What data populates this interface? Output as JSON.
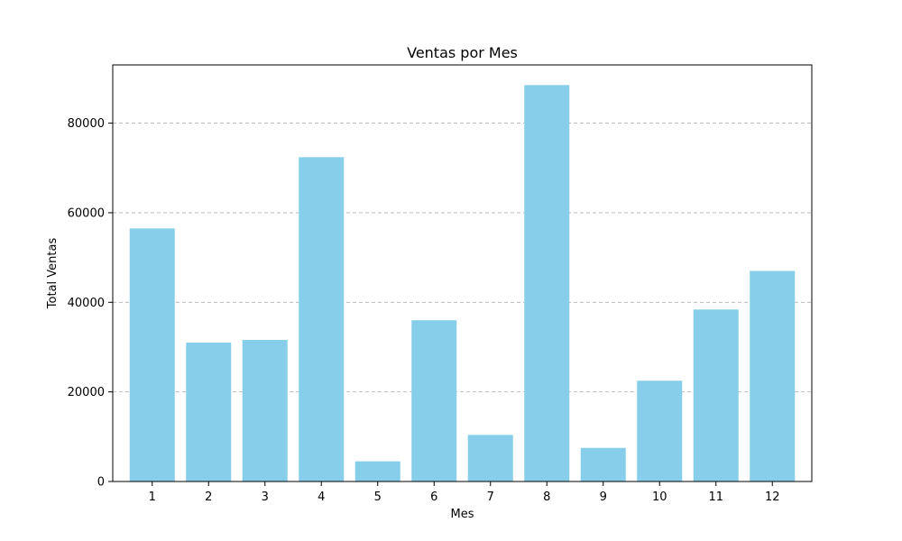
{
  "chart_data": {
    "type": "bar",
    "title": "Ventas por Mes",
    "xlabel": "Mes",
    "ylabel": "Total Ventas",
    "categories": [
      "1",
      "2",
      "3",
      "4",
      "5",
      "6",
      "7",
      "8",
      "9",
      "10",
      "11",
      "12"
    ],
    "values": [
      56500,
      31000,
      31600,
      72400,
      4500,
      36000,
      10400,
      88500,
      7500,
      22500,
      38400,
      47000
    ],
    "ylim": [
      0,
      93000
    ],
    "yticks": [
      0,
      20000,
      40000,
      60000,
      80000
    ],
    "ytick_labels": [
      "0",
      "20000",
      "40000",
      "60000",
      "80000"
    ],
    "grid": "y-dashed",
    "bar_color": "#87ceeb"
  }
}
